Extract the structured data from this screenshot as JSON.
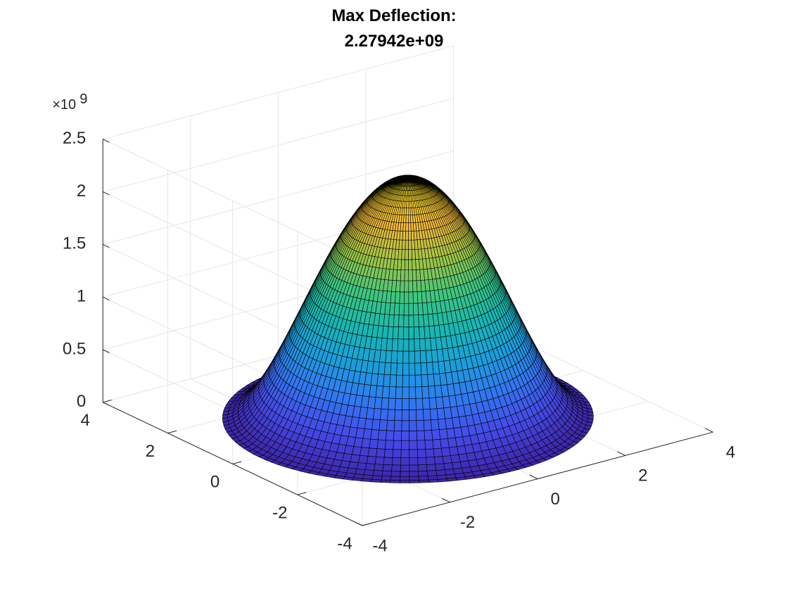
{
  "chart_data": {
    "type": "surface",
    "title": [
      "Max Deflection:",
      "2.27942e+09"
    ],
    "xlabel": "",
    "ylabel": "",
    "zlabel": "",
    "x_range": [
      -4,
      4
    ],
    "y_range": [
      -4,
      4
    ],
    "z_range": [
      0,
      2.5
    ],
    "x_ticks": [
      "-4",
      "-2",
      "0",
      "2",
      "4"
    ],
    "y_ticks": [
      "-4",
      "-2",
      "0",
      "2",
      "4"
    ],
    "z_ticks": [
      "0",
      "0.5",
      "1",
      "1.5",
      "2",
      "2.5"
    ],
    "z_multiplier": "×10",
    "z_exponent": "9",
    "surface": {
      "domain": "circular plate",
      "radius": 3.4,
      "max_deflection_e9": 2.27942,
      "profile": "z = max * (1 - (r/R)^2)^2",
      "colormap": "parula",
      "edge_color": "#000000"
    },
    "grid": true,
    "box": false
  }
}
